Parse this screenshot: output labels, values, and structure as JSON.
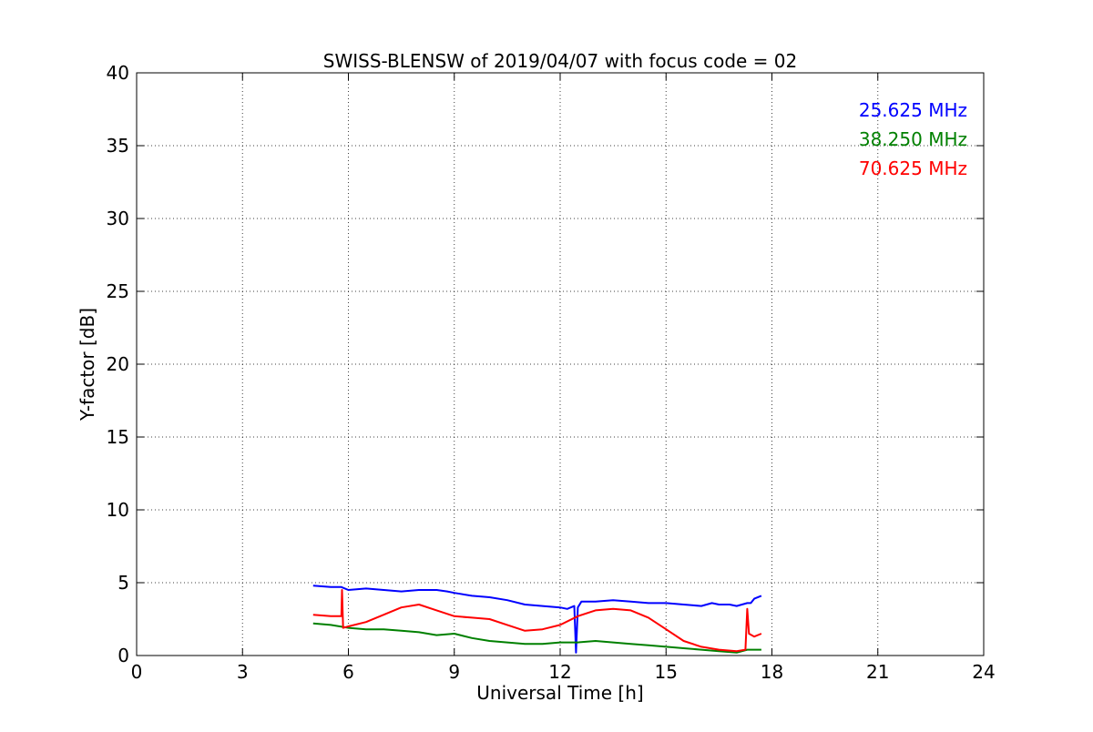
{
  "chart_data": {
    "type": "line",
    "title": "SWISS-BLENSW of 2019/04/07 with focus code = 02",
    "xlabel": "Universal Time [h]",
    "ylabel": "Y-factor [dB]",
    "xlim": [
      0,
      24
    ],
    "ylim": [
      0,
      40
    ],
    "xticks": [
      0,
      3,
      6,
      9,
      12,
      15,
      18,
      21,
      24
    ],
    "yticks": [
      0,
      5,
      10,
      15,
      20,
      25,
      30,
      35,
      40
    ],
    "grid": true,
    "legend_position": "top-right",
    "series": [
      {
        "name": "25.625 MHz",
        "color": "#0000ff",
        "x": [
          5.0,
          5.5,
          5.8,
          6.0,
          6.5,
          7.0,
          7.5,
          8.0,
          8.5,
          8.8,
          9.0,
          9.5,
          10.0,
          10.5,
          11.0,
          11.5,
          12.0,
          12.2,
          12.4,
          12.45,
          12.5,
          12.6,
          13.0,
          13.5,
          14.0,
          14.5,
          15.0,
          15.5,
          16.0,
          16.3,
          16.5,
          16.8,
          17.0,
          17.3,
          17.4,
          17.5,
          17.7
        ],
        "values": [
          4.8,
          4.7,
          4.7,
          4.5,
          4.6,
          4.5,
          4.4,
          4.5,
          4.5,
          4.4,
          4.3,
          4.1,
          4.0,
          3.8,
          3.5,
          3.4,
          3.3,
          3.2,
          3.4,
          0.2,
          3.3,
          3.7,
          3.7,
          3.8,
          3.7,
          3.6,
          3.6,
          3.5,
          3.4,
          3.6,
          3.5,
          3.5,
          3.4,
          3.6,
          3.6,
          3.9,
          4.1
        ]
      },
      {
        "name": "38.250 MHz",
        "color": "#008000",
        "x": [
          5.0,
          5.5,
          6.0,
          6.5,
          7.0,
          7.5,
          8.0,
          8.5,
          9.0,
          9.5,
          10.0,
          10.5,
          11.0,
          11.5,
          12.0,
          12.5,
          13.0,
          13.5,
          14.0,
          14.5,
          15.0,
          15.5,
          16.0,
          16.5,
          17.0,
          17.3,
          17.7
        ],
        "values": [
          2.2,
          2.1,
          1.9,
          1.8,
          1.8,
          1.7,
          1.6,
          1.4,
          1.5,
          1.2,
          1.0,
          0.9,
          0.8,
          0.8,
          0.9,
          0.9,
          1.0,
          0.9,
          0.8,
          0.7,
          0.6,
          0.5,
          0.4,
          0.3,
          0.2,
          0.4,
          0.4
        ]
      },
      {
        "name": "70.625 MHz",
        "color": "#ff0000",
        "x": [
          5.0,
          5.5,
          5.8,
          5.82,
          5.85,
          6.0,
          6.5,
          7.0,
          7.5,
          8.0,
          8.5,
          9.0,
          9.5,
          10.0,
          10.5,
          11.0,
          11.5,
          12.0,
          12.5,
          13.0,
          13.5,
          14.0,
          14.5,
          15.0,
          15.5,
          16.0,
          16.5,
          17.0,
          17.25,
          17.3,
          17.35,
          17.5,
          17.7
        ],
        "values": [
          2.8,
          2.7,
          2.7,
          4.5,
          1.9,
          2.0,
          2.3,
          2.8,
          3.3,
          3.5,
          3.1,
          2.7,
          2.6,
          2.5,
          2.1,
          1.7,
          1.8,
          2.1,
          2.7,
          3.1,
          3.2,
          3.1,
          2.6,
          1.8,
          1.0,
          0.6,
          0.4,
          0.3,
          0.4,
          3.2,
          1.5,
          1.3,
          1.5
        ]
      }
    ]
  }
}
